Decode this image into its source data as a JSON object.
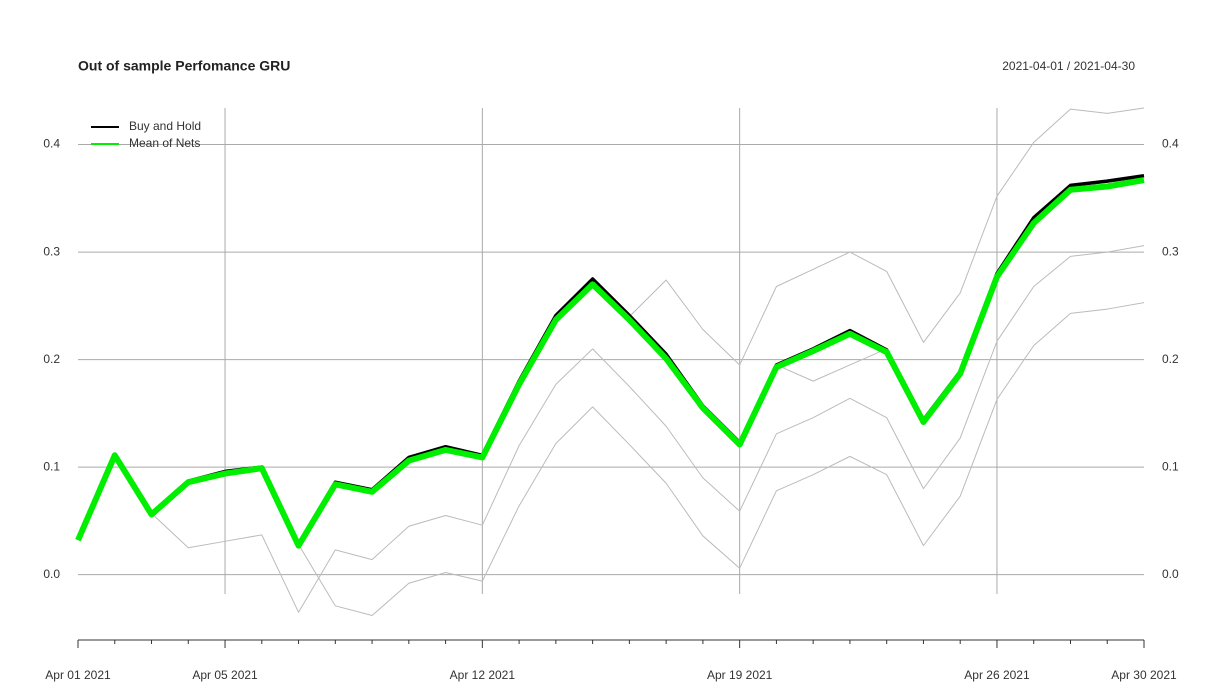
{
  "chart_data": {
    "type": "line",
    "title": "Out of sample Perfomance GRU",
    "subtitle": "2021-04-01 / 2021-04-30",
    "categories": [
      "Apr 01 2021",
      null,
      null,
      null,
      "Apr 05 2021",
      null,
      null,
      null,
      null,
      null,
      null,
      "Apr 12 2021",
      null,
      null,
      null,
      null,
      null,
      null,
      "Apr 19 2021",
      null,
      null,
      null,
      null,
      null,
      null,
      "Apr 26 2021",
      null,
      null,
      null,
      "Apr 30 2021"
    ],
    "series": [
      {
        "color": "#bbbbbb",
        "values": [
          0.033,
          0.112,
          0.057,
          0.087,
          0.096,
          0.1,
          0.028,
          0.086,
          0.079,
          0.109,
          0.119,
          0.111,
          0.18,
          0.241,
          0.275,
          0.24,
          0.274,
          0.228,
          0.195,
          0.268,
          0.284,
          0.3,
          0.282,
          0.216,
          0.262,
          0.352,
          0.402,
          0.433,
          0.429,
          0.434
        ]
      },
      {
        "color": "#bbbbbb",
        "values": [
          0.033,
          0.112,
          0.057,
          0.087,
          0.096,
          0.1,
          0.028,
          0.086,
          0.079,
          0.109,
          0.119,
          0.111,
          0.18,
          0.241,
          0.275,
          0.241,
          0.205,
          0.157,
          0.123,
          0.195,
          0.18,
          0.195,
          0.21,
          0.144,
          0.189,
          0.28,
          0.332,
          0.362,
          0.366,
          0.371
        ]
      },
      {
        "color": "#bbbbbb",
        "values": [
          0.033,
          0.112,
          0.057,
          0.025,
          0.031,
          0.037,
          -0.035,
          0.023,
          0.014,
          0.045,
          0.055,
          0.046,
          0.12,
          0.177,
          0.21,
          0.175,
          0.138,
          0.09,
          0.059,
          0.131,
          0.146,
          0.164,
          0.146,
          0.08,
          0.127,
          0.217,
          0.268,
          0.296,
          0.3,
          0.306
        ]
      },
      {
        "color": "#bbbbbb",
        "values": [
          0.033,
          0.112,
          0.057,
          0.087,
          0.096,
          0.1,
          0.028,
          -0.029,
          -0.038,
          -0.008,
          0.002,
          -0.006,
          0.064,
          0.122,
          0.156,
          0.121,
          0.085,
          0.036,
          0.006,
          0.078,
          0.093,
          0.11,
          0.093,
          0.027,
          0.073,
          0.163,
          0.213,
          0.243,
          0.247,
          0.253
        ]
      },
      {
        "name": "Buy and Hold",
        "color": "#000000",
        "values": [
          0.033,
          0.112,
          0.057,
          0.087,
          0.096,
          0.1,
          0.028,
          0.086,
          0.079,
          0.109,
          0.119,
          0.111,
          0.18,
          0.241,
          0.275,
          0.241,
          0.205,
          0.157,
          0.123,
          0.195,
          0.21,
          0.227,
          0.209,
          0.144,
          0.189,
          0.28,
          0.332,
          0.362,
          0.366,
          0.371
        ]
      },
      {
        "name": "Mean of Nets",
        "color": "#00ee00",
        "values": [
          0.032,
          0.111,
          0.056,
          0.086,
          0.094,
          0.099,
          0.027,
          0.084,
          0.077,
          0.106,
          0.116,
          0.109,
          0.177,
          0.237,
          0.27,
          0.237,
          0.201,
          0.155,
          0.121,
          0.193,
          0.208,
          0.224,
          0.207,
          0.142,
          0.187,
          0.277,
          0.327,
          0.358,
          0.361,
          0.367
        ]
      }
    ],
    "ylim": [
      -0.018,
      0.434
    ],
    "yticks": [
      {
        "value": 0,
        "label": "0.0"
      },
      0.1,
      0.2,
      0.3,
      0.4
    ],
    "grid": true,
    "legend": "top-left"
  }
}
